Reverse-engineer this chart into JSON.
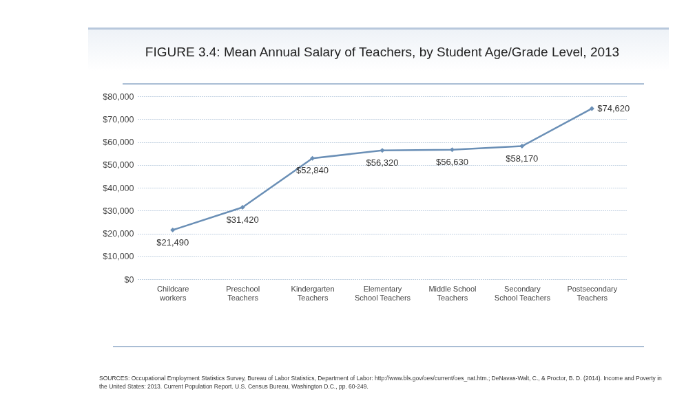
{
  "chart_data": {
    "type": "line",
    "title": "FIGURE 3.4: Mean Annual Salary of Teachers, by Student Age/Grade Level, 2013",
    "categories": [
      "Childcare workers",
      "Preschool Teachers",
      "Kindergarten Teachers",
      "Elementary School Teachers",
      "Middle School Teachers",
      "Secondary School Teachers",
      "Postsecondary Teachers"
    ],
    "series": [
      {
        "color": "#6a8fb6",
        "values": [
          21490,
          31420,
          52840,
          56320,
          56630,
          58170,
          74620
        ],
        "value_labels": [
          "$21,490",
          "$31,420",
          "$52,840",
          "$56,320",
          "$56,630",
          "$58,170",
          "$74,620"
        ]
      }
    ],
    "ylim": [
      0,
      80000
    ],
    "yticks": [
      {
        "value": 0,
        "label": "$0"
      },
      {
        "value": 10000,
        "label": "$10,000"
      },
      {
        "value": 20000,
        "label": "$20,000"
      },
      {
        "value": 30000,
        "label": "$30,000"
      },
      {
        "value": 40000,
        "label": "$40,000"
      },
      {
        "value": 50000,
        "label": "$50,000"
      },
      {
        "value": 60000,
        "label": "$60,000"
      },
      {
        "value": 70000,
        "label": "$70,000"
      },
      {
        "value": 80000,
        "label": "$80,000"
      }
    ],
    "grid": "y",
    "marker": "diamond",
    "line_style": "solid",
    "annotations": [
      "SOURCES: Occupational Employment Statistics Survey, Bureau of Labor Statistics, Department of Labor: http://www.bls.gov/oes/current/oes_nat.htm.; DeNavas-Walt, C., & Proctor, B. D. (2014). Income and Poverty in the United States: 2013. Current Population Report. U.S. Census Bureau, Washington D.C., pp. 60-249."
    ]
  }
}
